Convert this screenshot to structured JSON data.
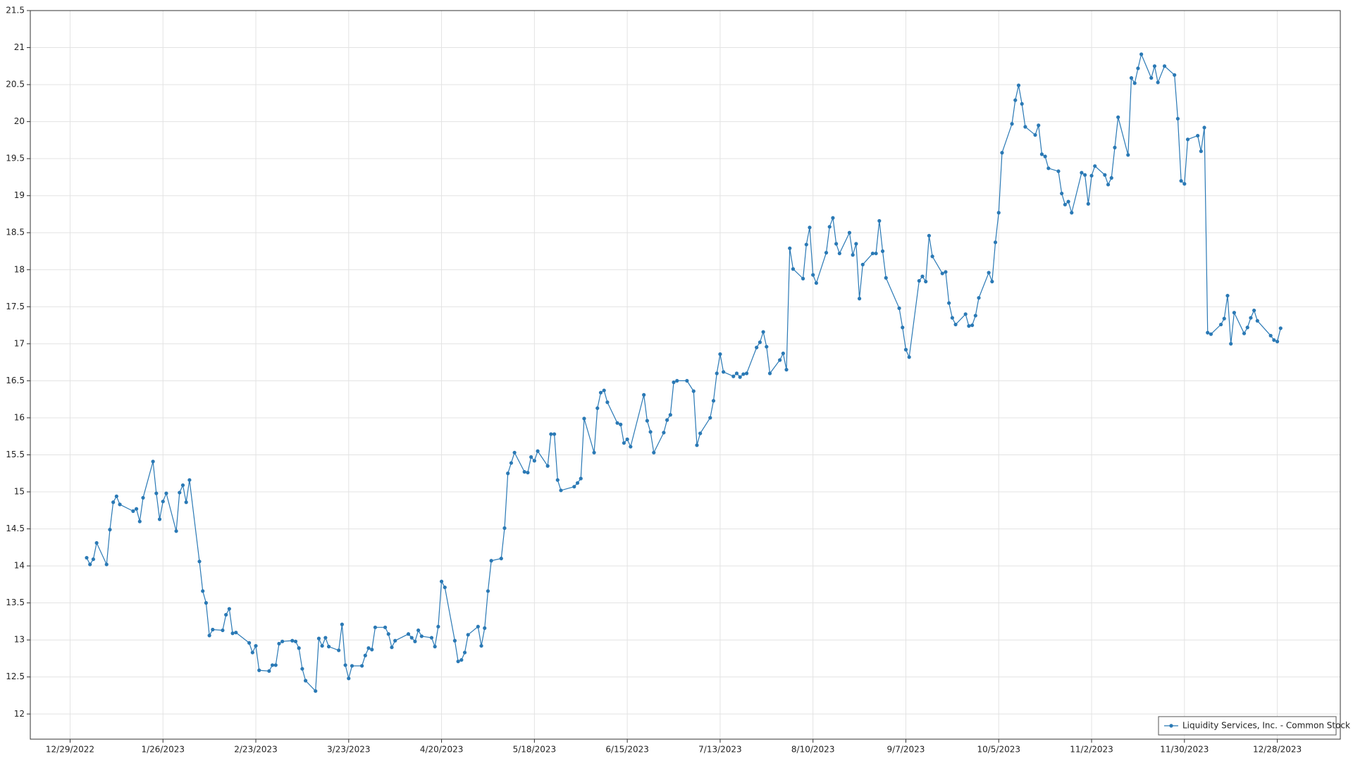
{
  "chart_data": {
    "type": "line",
    "x": [
      "2023-01-03",
      "2023-01-04",
      "2023-01-05",
      "2023-01-06",
      "2023-01-09",
      "2023-01-10",
      "2023-01-11",
      "2023-01-12",
      "2023-01-13",
      "2023-01-17",
      "2023-01-18",
      "2023-01-19",
      "2023-01-20",
      "2023-01-23",
      "2023-01-24",
      "2023-01-25",
      "2023-01-26",
      "2023-01-27",
      "2023-01-30",
      "2023-01-31",
      "2023-02-01",
      "2023-02-02",
      "2023-02-03",
      "2023-02-06",
      "2023-02-07",
      "2023-02-08",
      "2023-02-09",
      "2023-02-10",
      "2023-02-13",
      "2023-02-14",
      "2023-02-15",
      "2023-02-16",
      "2023-02-17",
      "2023-02-21",
      "2023-02-22",
      "2023-02-23",
      "2023-02-24",
      "2023-02-27",
      "2023-02-28",
      "2023-03-01",
      "2023-03-02",
      "2023-03-03",
      "2023-03-06",
      "2023-03-07",
      "2023-03-08",
      "2023-03-09",
      "2023-03-10",
      "2023-03-13",
      "2023-03-14",
      "2023-03-15",
      "2023-03-16",
      "2023-03-17",
      "2023-03-20",
      "2023-03-21",
      "2023-03-22",
      "2023-03-23",
      "2023-03-24",
      "2023-03-27",
      "2023-03-28",
      "2023-03-29",
      "2023-03-30",
      "2023-03-31",
      "2023-04-03",
      "2023-04-04",
      "2023-04-05",
      "2023-04-06",
      "2023-04-10",
      "2023-04-11",
      "2023-04-12",
      "2023-04-13",
      "2023-04-14",
      "2023-04-17",
      "2023-04-18",
      "2023-04-19",
      "2023-04-20",
      "2023-04-21",
      "2023-04-24",
      "2023-04-25",
      "2023-04-26",
      "2023-04-27",
      "2023-04-28",
      "2023-05-01",
      "2023-05-02",
      "2023-05-03",
      "2023-05-04",
      "2023-05-05",
      "2023-05-08",
      "2023-05-09",
      "2023-05-10",
      "2023-05-11",
      "2023-05-12",
      "2023-05-15",
      "2023-05-16",
      "2023-05-17",
      "2023-05-18",
      "2023-05-19",
      "2023-05-22",
      "2023-05-23",
      "2023-05-24",
      "2023-05-25",
      "2023-05-26",
      "2023-05-30",
      "2023-05-31",
      "2023-06-01",
      "2023-06-02",
      "2023-06-05",
      "2023-06-06",
      "2023-06-07",
      "2023-06-08",
      "2023-06-09",
      "2023-06-12",
      "2023-06-13",
      "2023-06-14",
      "2023-06-15",
      "2023-06-16",
      "2023-06-20",
      "2023-06-21",
      "2023-06-22",
      "2023-06-23",
      "2023-06-26",
      "2023-06-27",
      "2023-06-28",
      "2023-06-29",
      "2023-06-30",
      "2023-07-03",
      "2023-07-05",
      "2023-07-06",
      "2023-07-07",
      "2023-07-10",
      "2023-07-11",
      "2023-07-12",
      "2023-07-13",
      "2023-07-14",
      "2023-07-17",
      "2023-07-18",
      "2023-07-19",
      "2023-07-20",
      "2023-07-21",
      "2023-07-24",
      "2023-07-25",
      "2023-07-26",
      "2023-07-27",
      "2023-07-28",
      "2023-07-31",
      "2023-08-01",
      "2023-08-02",
      "2023-08-03",
      "2023-08-04",
      "2023-08-07",
      "2023-08-08",
      "2023-08-09",
      "2023-08-10",
      "2023-08-11",
      "2023-08-14",
      "2023-08-15",
      "2023-08-16",
      "2023-08-17",
      "2023-08-18",
      "2023-08-21",
      "2023-08-22",
      "2023-08-23",
      "2023-08-24",
      "2023-08-25",
      "2023-08-28",
      "2023-08-29",
      "2023-08-30",
      "2023-08-31",
      "2023-09-01",
      "2023-09-05",
      "2023-09-06",
      "2023-09-07",
      "2023-09-08",
      "2023-09-11",
      "2023-09-12",
      "2023-09-13",
      "2023-09-14",
      "2023-09-15",
      "2023-09-18",
      "2023-09-19",
      "2023-09-20",
      "2023-09-21",
      "2023-09-22",
      "2023-09-25",
      "2023-09-26",
      "2023-09-27",
      "2023-09-28",
      "2023-09-29",
      "2023-10-02",
      "2023-10-03",
      "2023-10-04",
      "2023-10-05",
      "2023-10-06",
      "2023-10-09",
      "2023-10-10",
      "2023-10-11",
      "2023-10-12",
      "2023-10-13",
      "2023-10-16",
      "2023-10-17",
      "2023-10-18",
      "2023-10-19",
      "2023-10-20",
      "2023-10-23",
      "2023-10-24",
      "2023-10-25",
      "2023-10-26",
      "2023-10-27",
      "2023-10-30",
      "2023-10-31",
      "2023-11-01",
      "2023-11-02",
      "2023-11-03",
      "2023-11-06",
      "2023-11-07",
      "2023-11-08",
      "2023-11-09",
      "2023-11-10",
      "2023-11-13",
      "2023-11-14",
      "2023-11-15",
      "2023-11-16",
      "2023-11-17",
      "2023-11-20",
      "2023-11-21",
      "2023-11-22",
      "2023-11-24",
      "2023-11-27",
      "2023-11-28",
      "2023-11-29",
      "2023-11-30",
      "2023-12-01",
      "2023-12-04",
      "2023-12-05",
      "2023-12-06",
      "2023-12-07",
      "2023-12-08",
      "2023-12-11",
      "2023-12-12",
      "2023-12-13",
      "2023-12-14",
      "2023-12-15",
      "2023-12-18",
      "2023-12-19",
      "2023-12-20",
      "2023-12-21",
      "2023-12-22",
      "2023-12-26",
      "2023-12-27",
      "2023-12-28",
      "2023-12-29"
    ],
    "series": [
      {
        "name": "Liquidity Services, Inc. - Common Stock",
        "color": "#2a79b5",
        "values": [
          14.11,
          14.02,
          14.09,
          14.31,
          14.02,
          14.49,
          14.86,
          14.94,
          14.83,
          14.74,
          14.77,
          14.6,
          14.92,
          15.41,
          14.98,
          14.63,
          14.87,
          14.98,
          14.47,
          14.99,
          15.09,
          14.86,
          15.16,
          14.06,
          13.66,
          13.5,
          13.06,
          13.14,
          13.13,
          13.34,
          13.42,
          13.09,
          13.1,
          12.96,
          12.83,
          12.92,
          12.59,
          12.58,
          12.66,
          12.66,
          12.95,
          12.98,
          12.99,
          12.98,
          12.89,
          12.61,
          12.45,
          12.31,
          13.02,
          12.92,
          13.03,
          12.91,
          12.86,
          13.21,
          12.66,
          12.48,
          12.65,
          12.65,
          12.79,
          12.89,
          12.87,
          13.17,
          13.17,
          13.08,
          12.9,
          12.99,
          13.08,
          13.03,
          12.98,
          13.13,
          13.05,
          13.03,
          12.91,
          13.18,
          13.79,
          13.71,
          12.99,
          12.71,
          12.73,
          12.83,
          13.07,
          13.18,
          12.92,
          13.16,
          13.66,
          14.07,
          14.1,
          14.51,
          15.25,
          15.39,
          15.53,
          15.27,
          15.26,
          15.47,
          15.42,
          15.55,
          15.35,
          15.78,
          15.78,
          15.16,
          15.02,
          15.07,
          15.12,
          15.18,
          15.99,
          15.53,
          16.13,
          16.34,
          16.37,
          16.21,
          15.93,
          15.91,
          15.66,
          15.71,
          15.61,
          16.31,
          15.96,
          15.81,
          15.53,
          15.8,
          15.97,
          16.04,
          16.48,
          16.5,
          16.5,
          16.36,
          15.63,
          15.79,
          16,
          16.23,
          16.6,
          16.86,
          16.62,
          16.56,
          16.6,
          16.55,
          16.59,
          16.6,
          16.95,
          17.02,
          17.16,
          16.96,
          16.6,
          16.78,
          16.87,
          16.65,
          18.29,
          18.01,
          17.88,
          18.34,
          18.57,
          17.93,
          17.82,
          18.23,
          18.58,
          18.7,
          18.35,
          18.22,
          18.5,
          18.2,
          18.35,
          17.61,
          18.07,
          18.22,
          18.22,
          18.66,
          18.25,
          17.89,
          17.48,
          17.22,
          16.92,
          16.82,
          17.85,
          17.91,
          17.84,
          18.46,
          18.18,
          17.95,
          17.97,
          17.55,
          17.35,
          17.26,
          17.4,
          17.24,
          17.25,
          17.38,
          17.62,
          17.96,
          17.84,
          18.37,
          18.77,
          19.58,
          19.97,
          20.29,
          20.49,
          20.24,
          19.93,
          19.82,
          19.95,
          19.56,
          19.53,
          19.37,
          19.33,
          19.03,
          18.88,
          18.92,
          18.77,
          19.31,
          19.28,
          18.89,
          19.27,
          19.4,
          19.28,
          19.15,
          19.24,
          19.65,
          20.06,
          19.55,
          20.59,
          20.52,
          20.72,
          20.91,
          20.59,
          20.75,
          20.53,
          20.75,
          20.63,
          20.04,
          19.2,
          19.16,
          19.76,
          19.81,
          19.6,
          19.92,
          17.15,
          17.13,
          17.26,
          17.34,
          17.65,
          17.0,
          17.42,
          17.14,
          17.22,
          17.35,
          17.45,
          17.31,
          17.11,
          17.05,
          17.03,
          17.21
        ]
      }
    ],
    "xlim": [
      "2022-12-17",
      "2024-01-16"
    ],
    "xticks": [
      {
        "value": "2022-12-29",
        "label": "12/29/2022"
      },
      {
        "value": "2023-01-26",
        "label": "1/26/2023"
      },
      {
        "value": "2023-02-23",
        "label": "2/23/2023"
      },
      {
        "value": "2023-03-23",
        "label": "3/23/2023"
      },
      {
        "value": "2023-04-20",
        "label": "4/20/2023"
      },
      {
        "value": "2023-05-18",
        "label": "5/18/2023"
      },
      {
        "value": "2023-06-15",
        "label": "6/15/2023"
      },
      {
        "value": "2023-07-13",
        "label": "7/13/2023"
      },
      {
        "value": "2023-08-10",
        "label": "8/10/2023"
      },
      {
        "value": "2023-09-07",
        "label": "9/7/2023"
      },
      {
        "value": "2023-10-05",
        "label": "10/5/2023"
      },
      {
        "value": "2023-11-02",
        "label": "11/2/2023"
      },
      {
        "value": "2023-11-30",
        "label": "11/30/2023"
      },
      {
        "value": "2023-12-28",
        "label": "12/28/2023"
      }
    ],
    "ylim": [
      11.66,
      21.5
    ],
    "yticks": [
      12,
      12.5,
      13,
      13.5,
      14,
      14.5,
      15,
      15.5,
      16,
      16.5,
      17,
      17.5,
      18,
      18.5,
      19,
      19.5,
      20,
      20.5,
      21,
      21.5
    ],
    "grid": true,
    "legend": "lower right"
  }
}
